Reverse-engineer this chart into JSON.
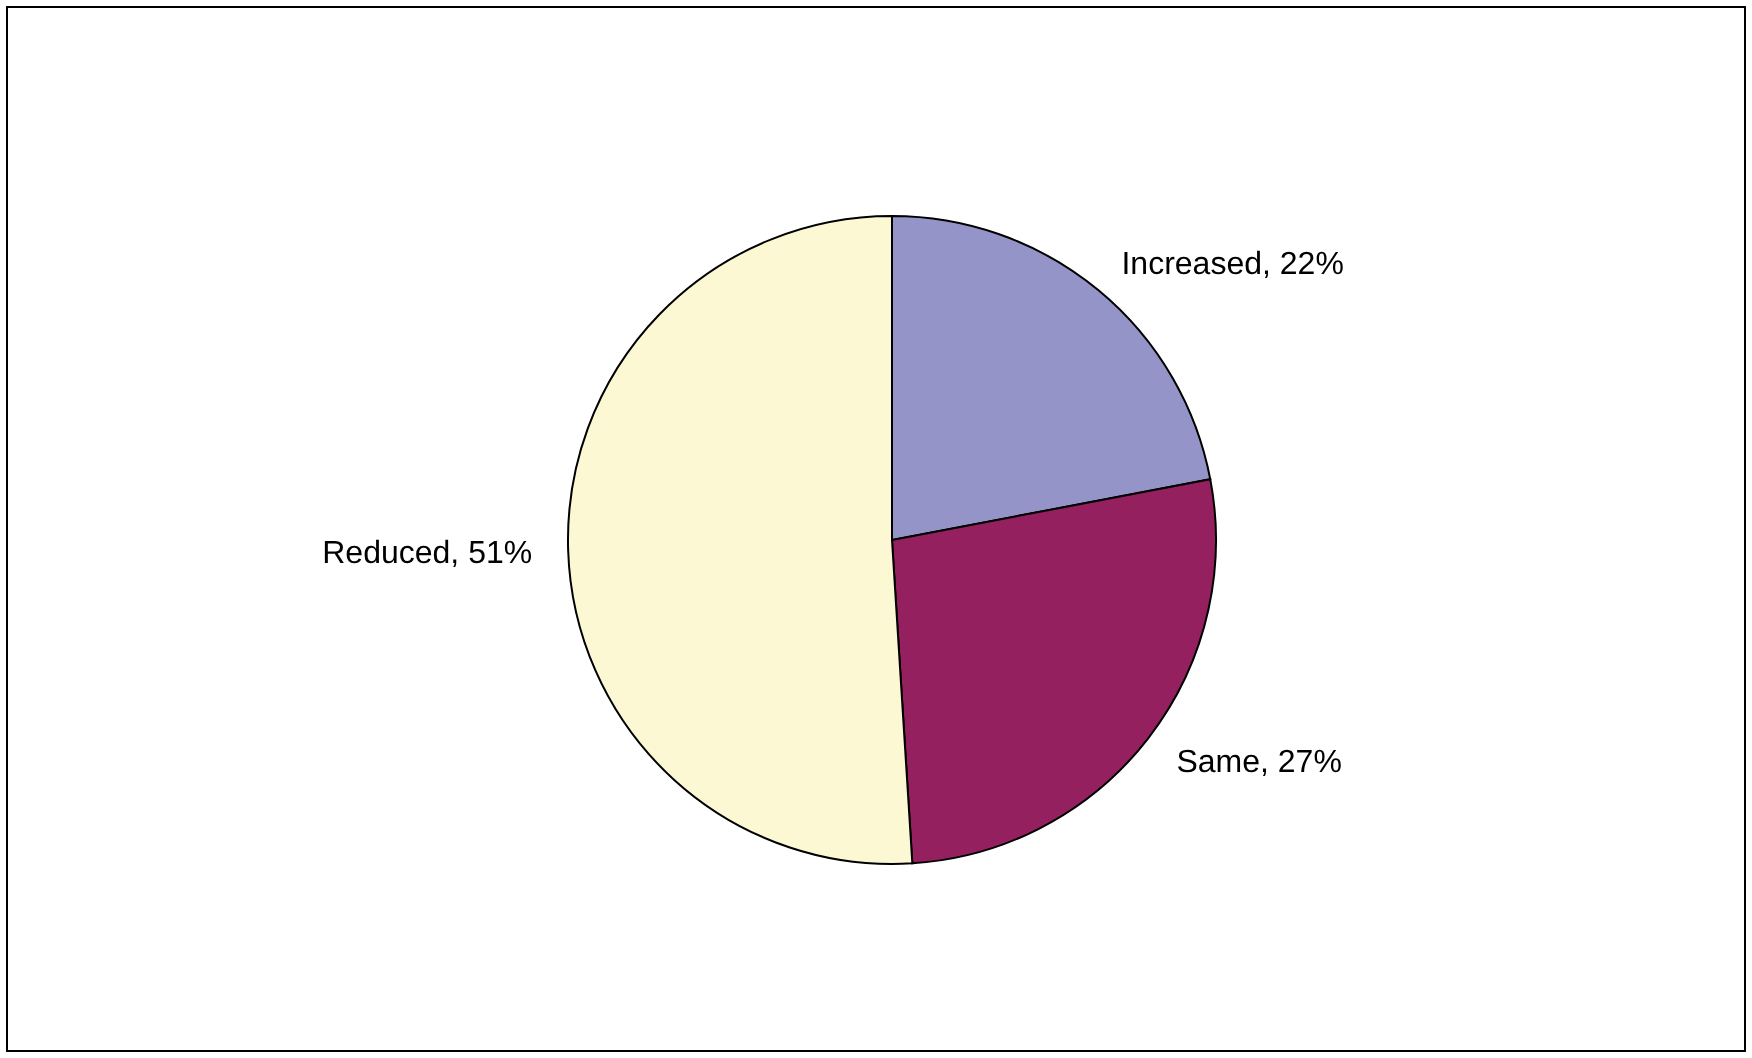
{
  "chart_data": {
    "type": "pie",
    "categories": [
      "Increased",
      "Same",
      "Reduced"
    ],
    "values": [
      22,
      27,
      51
    ],
    "value_labels": [
      "22%",
      "27%",
      "51%"
    ],
    "colors": [
      "#9494c8",
      "#952060",
      "#fbf8d3"
    ]
  }
}
